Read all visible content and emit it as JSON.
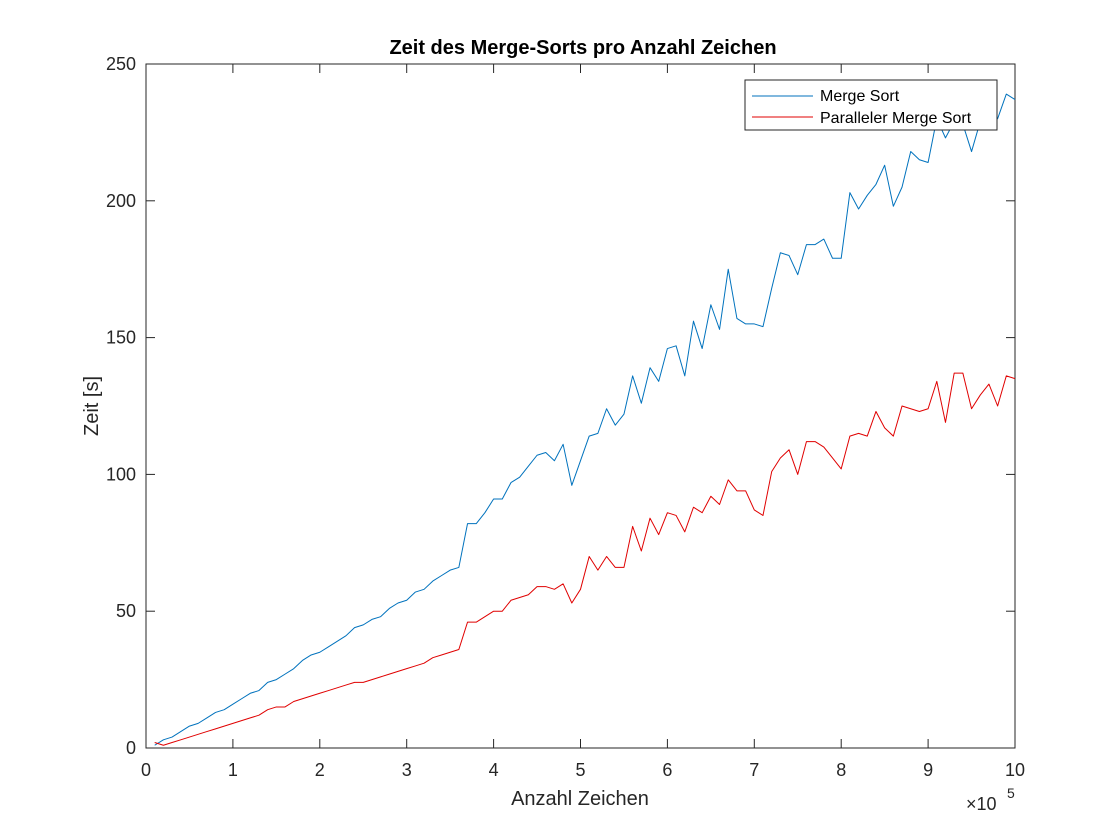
{
  "chart_data": {
    "type": "line",
    "title": "Zeit des Merge-Sorts pro Anzahl Zeichen",
    "xlabel": "Anzahl Zeichen",
    "ylabel": "Zeit [s]",
    "x_exponent_base": "×10",
    "x_exponent_power": "5",
    "xlim": [
      0,
      10
    ],
    "ylim": [
      0,
      250
    ],
    "x_ticks": [
      0,
      1,
      2,
      3,
      4,
      5,
      6,
      7,
      8,
      9,
      10
    ],
    "x_tick_labels": [
      "0",
      "1",
      "2",
      "3",
      "4",
      "5",
      "6",
      "7",
      "8",
      "9",
      "10"
    ],
    "y_ticks": [
      0,
      50,
      100,
      150,
      200,
      250
    ],
    "y_tick_labels": [
      "0",
      "50",
      "100",
      "150",
      "200",
      "250"
    ],
    "grid": false,
    "legend_position": "top-right",
    "series": [
      {
        "name": "Merge Sort",
        "color": "#0072BD",
        "x": [
          0.1,
          0.2,
          0.3,
          0.4,
          0.5,
          0.6,
          0.7,
          0.8,
          0.9,
          1.0,
          1.1,
          1.2,
          1.3,
          1.4,
          1.5,
          1.6,
          1.7,
          1.8,
          1.9,
          2.0,
          2.1,
          2.2,
          2.3,
          2.4,
          2.5,
          2.6,
          2.7,
          2.8,
          2.9,
          3.0,
          3.1,
          3.2,
          3.3,
          3.4,
          3.5,
          3.6,
          3.7,
          3.8,
          3.9,
          4.0,
          4.1,
          4.2,
          4.3,
          4.4,
          4.5,
          4.6,
          4.7,
          4.8,
          4.9,
          5.0,
          5.1,
          5.2,
          5.3,
          5.4,
          5.5,
          5.6,
          5.7,
          5.8,
          5.9,
          6.0,
          6.1,
          6.2,
          6.3,
          6.4,
          6.5,
          6.6,
          6.7,
          6.8,
          6.9,
          7.0,
          7.1,
          7.2,
          7.3,
          7.4,
          7.5,
          7.6,
          7.7,
          7.8,
          7.9,
          8.0,
          8.1,
          8.2,
          8.3,
          8.4,
          8.5,
          8.6,
          8.7,
          8.8,
          8.9,
          9.0,
          9.1,
          9.2,
          9.3,
          9.4,
          9.5,
          9.6,
          9.7,
          9.8,
          9.9,
          10.0
        ],
        "values": [
          1,
          3,
          4,
          6,
          8,
          9,
          11,
          13,
          14,
          16,
          18,
          20,
          21,
          24,
          25,
          27,
          29,
          32,
          34,
          35,
          37,
          39,
          41,
          44,
          45,
          47,
          48,
          51,
          53,
          54,
          57,
          58,
          61,
          63,
          65,
          66,
          82,
          82,
          86,
          91,
          91,
          97,
          99,
          103,
          107,
          108,
          105,
          111,
          96,
          105,
          114,
          115,
          124,
          118,
          122,
          136,
          126,
          139,
          134,
          146,
          147,
          136,
          156,
          146,
          162,
          153,
          175,
          157,
          155,
          155,
          154,
          168,
          181,
          180,
          173,
          184,
          184,
          186,
          179,
          179,
          203,
          197,
          202,
          206,
          213,
          198,
          205,
          218,
          215,
          214,
          230,
          223,
          229,
          228,
          218,
          229,
          231,
          230,
          239,
          237
        ]
      },
      {
        "name": "Paralleler Merge Sort",
        "color": "#E00000",
        "x": [
          0.1,
          0.2,
          0.3,
          0.4,
          0.5,
          0.6,
          0.7,
          0.8,
          0.9,
          1.0,
          1.1,
          1.2,
          1.3,
          1.4,
          1.5,
          1.6,
          1.7,
          1.8,
          1.9,
          2.0,
          2.1,
          2.2,
          2.3,
          2.4,
          2.5,
          2.6,
          2.7,
          2.8,
          2.9,
          3.0,
          3.1,
          3.2,
          3.3,
          3.4,
          3.5,
          3.6,
          3.7,
          3.8,
          3.9,
          4.0,
          4.1,
          4.2,
          4.3,
          4.4,
          4.5,
          4.6,
          4.7,
          4.8,
          4.9,
          5.0,
          5.1,
          5.2,
          5.3,
          5.4,
          5.5,
          5.6,
          5.7,
          5.8,
          5.9,
          6.0,
          6.1,
          6.2,
          6.3,
          6.4,
          6.5,
          6.6,
          6.7,
          6.8,
          6.9,
          7.0,
          7.1,
          7.2,
          7.3,
          7.4,
          7.5,
          7.6,
          7.7,
          7.8,
          7.9,
          8.0,
          8.1,
          8.2,
          8.3,
          8.4,
          8.5,
          8.6,
          8.7,
          8.8,
          8.9,
          9.0,
          9.1,
          9.2,
          9.3,
          9.4,
          9.5,
          9.6,
          9.7,
          9.8,
          9.9,
          10.0
        ],
        "values": [
          2,
          1,
          2,
          3,
          4,
          5,
          6,
          7,
          8,
          9,
          10,
          11,
          12,
          14,
          15,
          15,
          17,
          18,
          19,
          20,
          21,
          22,
          23,
          24,
          24,
          25,
          26,
          27,
          28,
          29,
          30,
          31,
          33,
          34,
          35,
          36,
          46,
          46,
          48,
          50,
          50,
          54,
          55,
          56,
          59,
          59,
          58,
          60,
          53,
          58,
          70,
          65,
          70,
          66,
          66,
          81,
          72,
          84,
          78,
          86,
          85,
          79,
          88,
          86,
          92,
          89,
          98,
          94,
          94,
          87,
          85,
          101,
          106,
          109,
          100,
          112,
          112,
          110,
          106,
          102,
          114,
          115,
          114,
          123,
          117,
          114,
          125,
          124,
          123,
          124,
          134,
          119,
          137,
          137,
          124,
          129,
          133,
          125,
          136,
          135
        ]
      }
    ]
  }
}
